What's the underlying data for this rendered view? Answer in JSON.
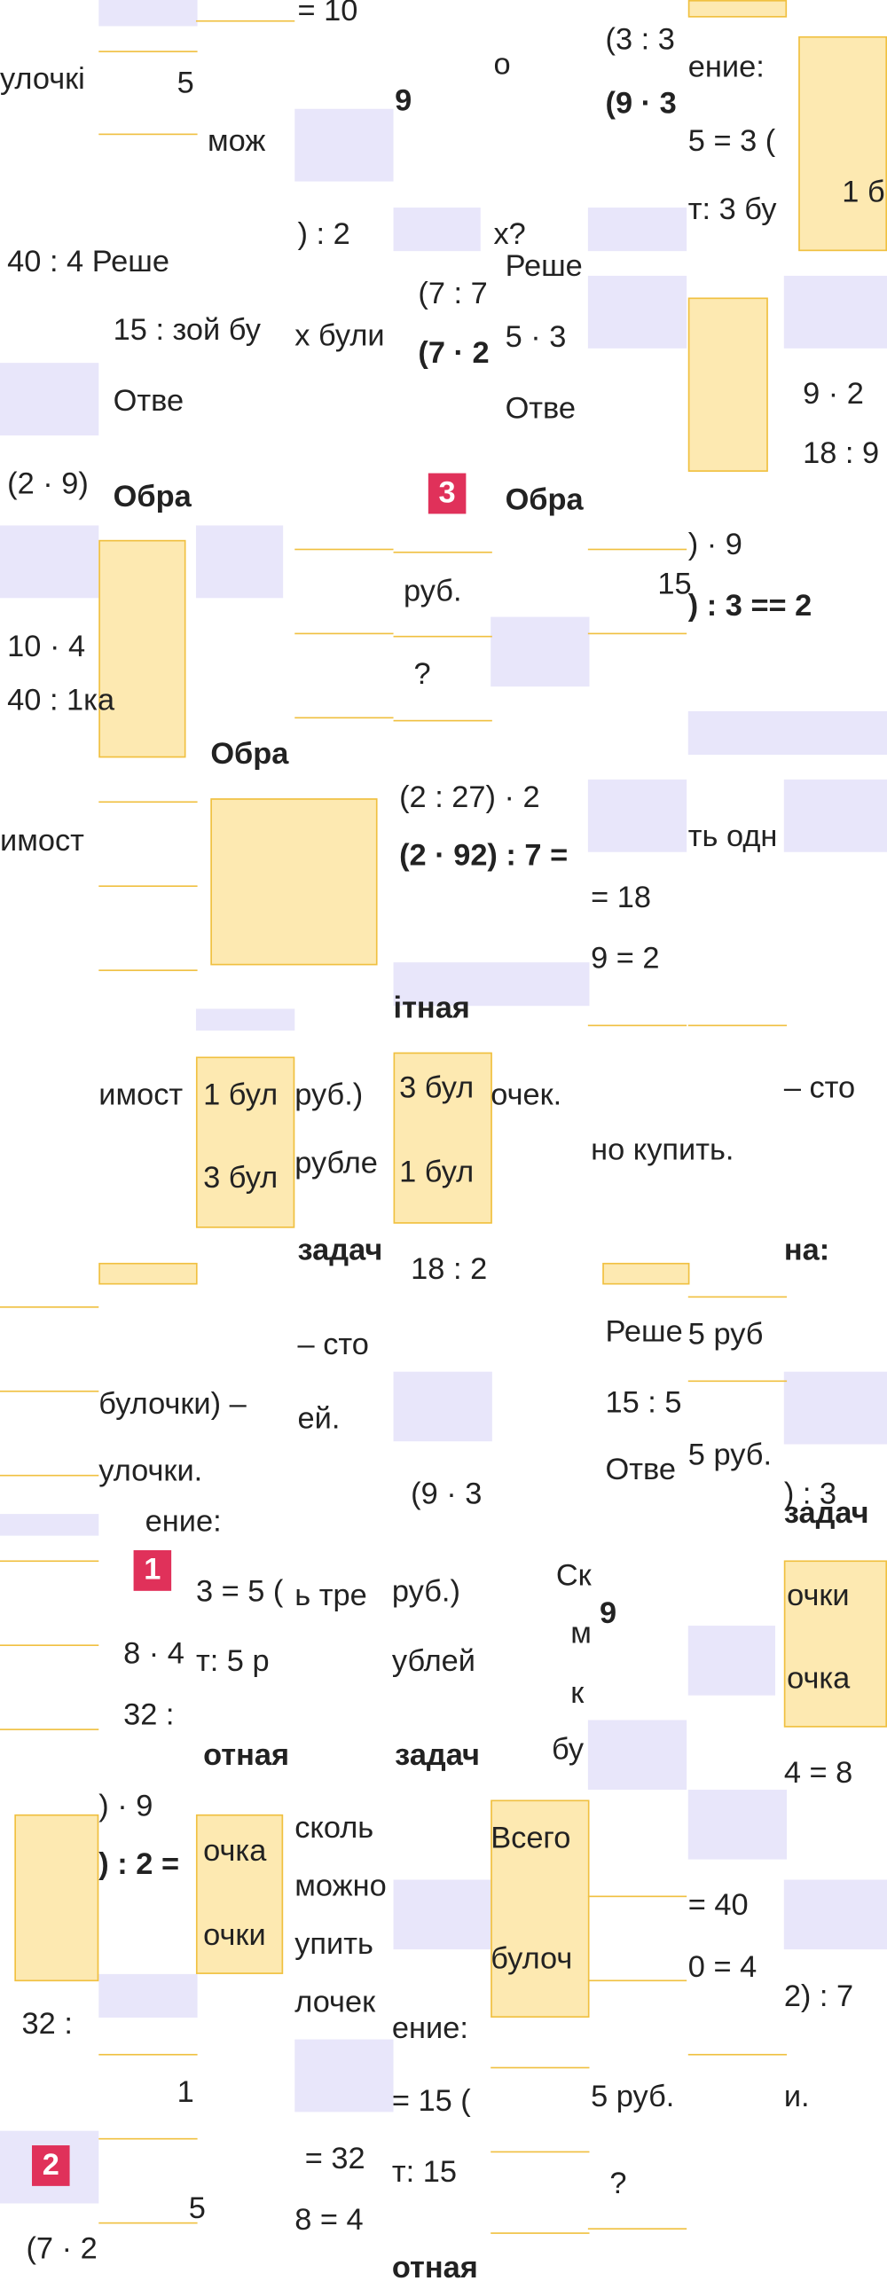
{
  "fragments": [
    "= 10",
    "улочкі",
    "5",
    "9",
    "мож",
    "о",
    "(3 : 3",
    "ение:",
    "(9 · 3",
    "5 = 3 (",
    "т: 3 бу",
    "1 б",
    ") : 2",
    "х?",
    "40 : 4 Реше",
    "Реше",
    "(7 : 7",
    "15 : зой бу",
    "х були",
    "5 · 3",
    "(7 · 2",
    "Отве",
    "Отве",
    "9 · 2",
    "18 : 9",
    "(2 · 9)",
    "Обра",
    "3",
    "Обра",
    ") · 9",
    "15",
    ") : 3 == 2",
    "руб.",
    "?",
    "10 · 4",
    "40 : 1ка",
    "Обра",
    "(2 : 27) · 2",
    "(2 · 92) : 7 =",
    "ть одн",
    "имост",
    "= 18",
    "9 = 2",
    "ітная",
    "имост",
    "1 бул",
    "руб.)",
    "3 бул",
    "очек.",
    "– сто",
    "3 бул",
    "рубле",
    "1 бул",
    "но купить.",
    "задач",
    "18 : 2",
    "на:",
    "Реше",
    "5 руб",
    "– сто",
    "булочки) –",
    "ей.",
    "15 : 5",
    "улочки.",
    "Отве",
    "5 руб.",
    "(9 · 3",
    ") : 3",
    "ение:",
    "задач",
    "1",
    "3 = 5 (",
    "ь тре",
    "руб.)",
    "Ск",
    "9",
    "очки",
    "8 · 4",
    "т: 5 р",
    "ублей",
    "м",
    "очка",
    "32 :",
    "к",
    "бу",
    "отная",
    "задач",
    "4 = 8",
    ") · 9",
    ") : 2 =",
    "очка",
    "сколь",
    "Всего",
    "можно",
    "= 40",
    "очки",
    "упить",
    "булоч",
    "0 = 4",
    "2) : 7",
    "лочек",
    "32 :",
    "ение:",
    "1",
    "= 15 (",
    "5 руб.",
    "и.",
    "2",
    "= 32",
    "т: 15",
    "?",
    "5",
    "8 = 4",
    "(7 · 2",
    "отная"
  ]
}
